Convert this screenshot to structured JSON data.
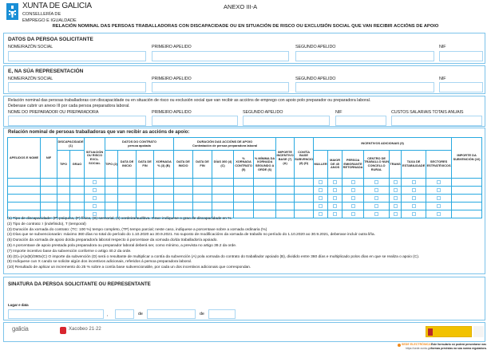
{
  "header": {
    "org": "XUNTA DE GALICIA",
    "dept1": "CONSELLERÍA DE",
    "dept2": "EMPREGO E IGUALDADE",
    "annex": "ANEXO III-A",
    "title": "RELACIÓN NOMINAL DAS PERSOAS TRABALLADORAS CON DISCAPACIDADE OU EN SITUACIÓN DE RISCO OU EXCLUSIÓN SOCIAL QUE VAN RECIBIR ACCIÓNS DE APOIO"
  },
  "applicant": {
    "title": "DATOS DA PERSOA SOLICITANTE",
    "name_label": "NOME/RAZÓN SOCIAL",
    "surname1_label": "PRIMEIRO APELIDO",
    "surname2_label": "SEGUNDO APELIDO",
    "nif_label": "NIF",
    "name": "",
    "surname1": "",
    "surname2": "",
    "nif": ""
  },
  "representative": {
    "title": "E, NA SÚA REPRESENTACIÓN",
    "name_label": "NOME/RAZÓN SOCIAL",
    "surname1_label": "PRIMEIRO APELIDO",
    "surname2_label": "SEGUNDO APELIDO",
    "nif_label": "NIF",
    "name": "",
    "surname1": "",
    "surname2": "",
    "nif": ""
  },
  "preparer": {
    "intro1": "Relación nominal das persoas traballadoras con discapacidade ou en situación de risco ou exclusión social que van recibir as accións de emprego con apoio polo preparador ou preparadora laboral.",
    "intro2": "Deberase cubrir un anexo III por cada persoa preparadora laboral.",
    "name_label": "NOME DO PREPARADOR OU PREPARADORA",
    "surname1_label": "PRIMEIRO APELIDO",
    "surname2_label": "SEGUNDO APELIDO",
    "nif_label": "NIF",
    "costs_label": "CUSTOS SALARIAIS TOTAIS ANUAIS",
    "name": "",
    "surname1": "",
    "surname2": "",
    "nif": "",
    "costs": ""
  },
  "workers": {
    "title": "Relación nominal de persoas traballadoras que van recibir as accións de apoio:",
    "h": {
      "names": "APELIDOS E NOME",
      "nif": "NIF",
      "disability": "DISCAPACIDADE (1)",
      "dis_type": "TIPO",
      "dis_grade": "GRAO",
      "risk": "SITUACIÓN OU RISCO EXCL. SOCIAL",
      "contract": "DATOS DO CONTRATO",
      "contract_sub": "persoa apoiada",
      "c_type": "TIPO (2)",
      "c_start": "DATA DE INICIO",
      "c_end": "DATA DE FIN",
      "c_hours": "XORNADA % (3) (B)",
      "support": "DURACIÓN DAS ACCIÓNS DE APOIO",
      "support_sub": "Contratación de persoa preparadora laboral",
      "s_start": "DATA DE INICIO",
      "s_end": "DATA DE FIN",
      "s_days": "DÍAS 360 (4) (C)",
      "s_pct": "% XORNADA CONTRATO (5)",
      "s_min": "% MÍNIMA DA XORNADA SEGUNDO A ORDE (6)",
      "base": "IMPORTE INCENTIVO BASE (7) (A)",
      "amount": "CONTÍA BASE SUBVENCIONABLE (8) (D)",
      "incentives": "INCENTIVOS ADICIONAIS (9)",
      "i_woman": "MULLER",
      "i_over45": "MAIOR DE 45 ANOS",
      "i_emigrant": "PERSOA EMIGRANTE RETORNADA",
      "i_rural": "CENTRO DE TRABALLO NUN CONCELLO RURAL",
      "i_trans": "TRANS",
      "i_stability": "TAXA DE ESTABILIDADE",
      "i_sectors": "SECTORES ESTRATÉXICOS",
      "total": "IMPORTE DA SUBVENCIÓN (10)"
    },
    "rows": [
      {
        "name": "",
        "nif": "",
        "risk": false,
        "incentives": [
          false,
          false,
          false,
          false,
          false,
          false,
          false
        ]
      },
      {
        "name": "",
        "nif": "",
        "risk": false,
        "incentives": [
          false,
          false,
          false,
          false,
          false,
          false,
          false
        ]
      },
      {
        "name": "",
        "nif": "",
        "risk": false,
        "incentives": [
          false,
          false,
          false,
          false,
          false,
          false,
          false
        ]
      },
      {
        "name": "",
        "nif": "",
        "risk": false,
        "incentives": [
          false,
          false,
          false,
          false,
          false,
          false,
          false
        ]
      },
      {
        "name": "",
        "nif": "",
        "risk": false,
        "incentives": [
          false,
          false,
          false,
          false,
          false,
          false,
          false
        ]
      }
    ]
  },
  "footnotes": [
    "(1) Tipo de discapacidade: (P) psíquica, (F) física, (S) sensorial, (x) xordeira/audítiva. Grao: indíquese o grao de discapacidade en %",
    "(2) Tipo de contrato: I (indefinido), T (temporal)",
    "(3) Duración da xornada do contrato: (TC: 100 %) tempo completo, (TP) tempo parcial; neste caso, indíquese a porcentaxe sobre a xornada ordinaria (%)",
    "(4) Días que se  subvencionarán: máximo 360 días no total do período do 1.10.2020 ao 30.9.2021. No suposto de modificacións da xornada de traballo no período do 1.10.2020 ao 30.9.2021, deberase incluír outra liña.",
    "(5) Duración da xornada de apoio do/da preparador/a laboral respecto á porcentaxe da xornada do/da traballador/a apoiado.",
    "(6) A porcentaxe de apoio prestada pola preparadora ou preparador laboral deberá ser, como mínimo, a prevista no artigo 39.2 da orde.",
    "(7) Importe incentivo base da subvención conforme o artigo 40.2 da orde.",
    "(8) (D)=(A)x(B)/360x(C) O importe da subvención (D) será o resultante de multiplicar a contía da subvención (A) pola xornada do contrato do traballador apoiado (B), dividido entre 360 días e multiplicado polos días en que se realiza o apoio (C).",
    "(9) Indíquese cun X cando se solicite algún dos incentivos adicionais, referidos á persoa preparadora laboral.",
    "(10) Resultado de aplicar un incremento do 25 % sobre a contía base subvencionable, por cada un dos incentivos adicionais que correspondan."
  ],
  "signature": {
    "title": "SINATURA DA PERSOA SOLICITANTE OU REPRESENTANTE",
    "place_date_label": "Lugar e data",
    "comma": ",",
    "de1": "de",
    "de2": "de",
    "place": "",
    "day": "",
    "month": "",
    "year": ""
  },
  "footer": {
    "galicia": "galicia",
    "xacobeo": "Xacobeo 21·22",
    "sede": "SEDE ELECTRÓNICA",
    "sede_url": "https://sede.xunta.gal",
    "note1": "Este formulario só poderá presentarse nas",
    "note2": "formas previstas na súa norma reguladora."
  },
  "colors": {
    "accent": "#29a9e0",
    "brand": "#1a8fd6"
  }
}
